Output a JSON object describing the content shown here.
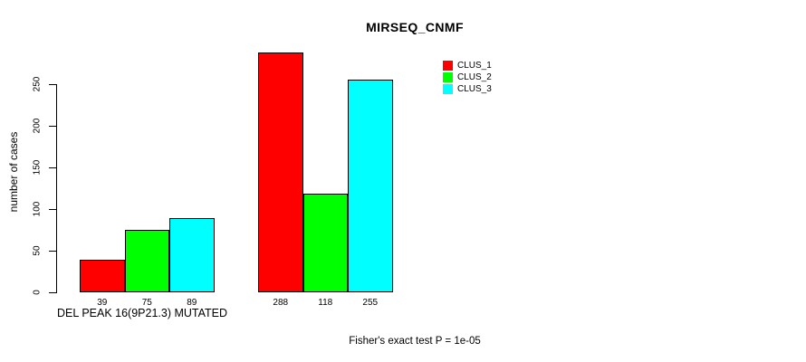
{
  "chart_data": {
    "type": "bar",
    "title": "MIRSEQ_CNMF",
    "ylabel": "number of cases",
    "xlabel": "DEL PEAK 16(9P21.3) MUTATED",
    "annotation": "Fisher's exact test P = 1e-05",
    "group_labels": [
      "DEL PEAK 16(9P21.3) MUTATED",
      ""
    ],
    "series": [
      {
        "name": "CLUS_1",
        "color": "#ff0000",
        "values": [
          39,
          288
        ]
      },
      {
        "name": "CLUS_2",
        "color": "#00ff00",
        "values": [
          75,
          118
        ]
      },
      {
        "name": "CLUS_3",
        "color": "#00ffff",
        "values": [
          89,
          255
        ]
      }
    ],
    "value_labels_shown": true,
    "yticks": [
      0,
      50,
      100,
      150,
      200,
      250
    ],
    "ylim": [
      0,
      290
    ],
    "grid": false,
    "legend_position": "top-right",
    "background_color": "#ffffff",
    "axis_color": "#000000"
  }
}
